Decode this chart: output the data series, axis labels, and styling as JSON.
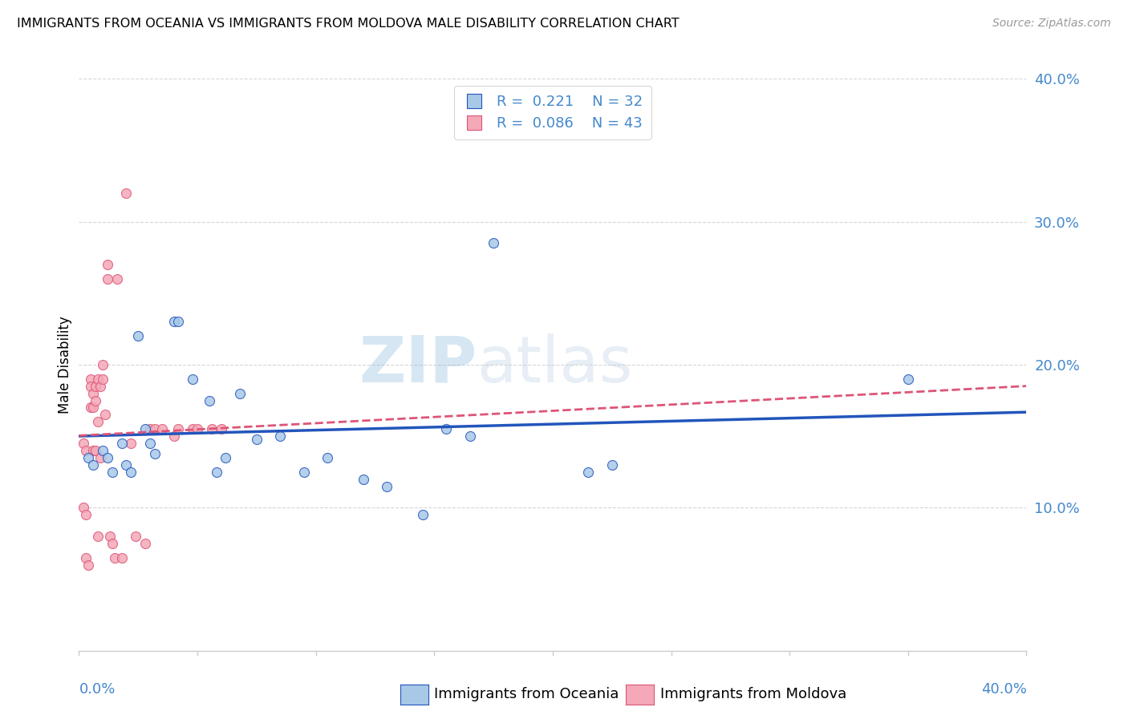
{
  "title": "IMMIGRANTS FROM OCEANIA VS IMMIGRANTS FROM MOLDOVA MALE DISABILITY CORRELATION CHART",
  "source": "Source: ZipAtlas.com",
  "ylabel": "Male Disability",
  "xmin": 0.0,
  "xmax": 0.4,
  "ymin": 0.0,
  "ymax": 0.4,
  "yticks": [
    0.1,
    0.2,
    0.3,
    0.4
  ],
  "ytick_labels": [
    "10.0%",
    "20.0%",
    "30.0%",
    "40.0%"
  ],
  "legend_R1": "R =  0.221",
  "legend_N1": "N = 32",
  "legend_R2": "R =  0.086",
  "legend_N2": "N = 43",
  "color_oceania": "#a8c8e8",
  "color_moldova": "#f4a8b8",
  "color_line_oceania": "#2255bb",
  "color_line_moldova": "#dd5577",
  "color_text": "#4488cc",
  "oceania_x": [
    0.004,
    0.006,
    0.01,
    0.012,
    0.014,
    0.018,
    0.02,
    0.022,
    0.025,
    0.028,
    0.03,
    0.032,
    0.04,
    0.042,
    0.048,
    0.055,
    0.058,
    0.062,
    0.068,
    0.075,
    0.085,
    0.095,
    0.105,
    0.12,
    0.13,
    0.145,
    0.155,
    0.165,
    0.175,
    0.215,
    0.225,
    0.35
  ],
  "oceania_y": [
    0.135,
    0.13,
    0.14,
    0.135,
    0.125,
    0.145,
    0.13,
    0.125,
    0.22,
    0.155,
    0.145,
    0.138,
    0.23,
    0.23,
    0.19,
    0.175,
    0.125,
    0.135,
    0.18,
    0.148,
    0.15,
    0.125,
    0.135,
    0.12,
    0.115,
    0.095,
    0.155,
    0.15,
    0.285,
    0.125,
    0.13,
    0.19
  ],
  "moldova_x": [
    0.002,
    0.002,
    0.003,
    0.003,
    0.003,
    0.004,
    0.005,
    0.005,
    0.005,
    0.006,
    0.006,
    0.006,
    0.007,
    0.007,
    0.007,
    0.008,
    0.008,
    0.008,
    0.009,
    0.009,
    0.01,
    0.01,
    0.011,
    0.012,
    0.012,
    0.013,
    0.014,
    0.015,
    0.016,
    0.018,
    0.02,
    0.022,
    0.024,
    0.028,
    0.03,
    0.032,
    0.035,
    0.04,
    0.042,
    0.048,
    0.05,
    0.056,
    0.06
  ],
  "moldova_y": [
    0.145,
    0.1,
    0.14,
    0.095,
    0.065,
    0.06,
    0.19,
    0.185,
    0.17,
    0.18,
    0.17,
    0.14,
    0.185,
    0.175,
    0.14,
    0.19,
    0.16,
    0.08,
    0.185,
    0.135,
    0.2,
    0.19,
    0.165,
    0.27,
    0.26,
    0.08,
    0.075,
    0.065,
    0.26,
    0.065,
    0.32,
    0.145,
    0.08,
    0.075,
    0.155,
    0.155,
    0.155,
    0.15,
    0.155,
    0.155,
    0.155,
    0.155,
    0.155
  ]
}
